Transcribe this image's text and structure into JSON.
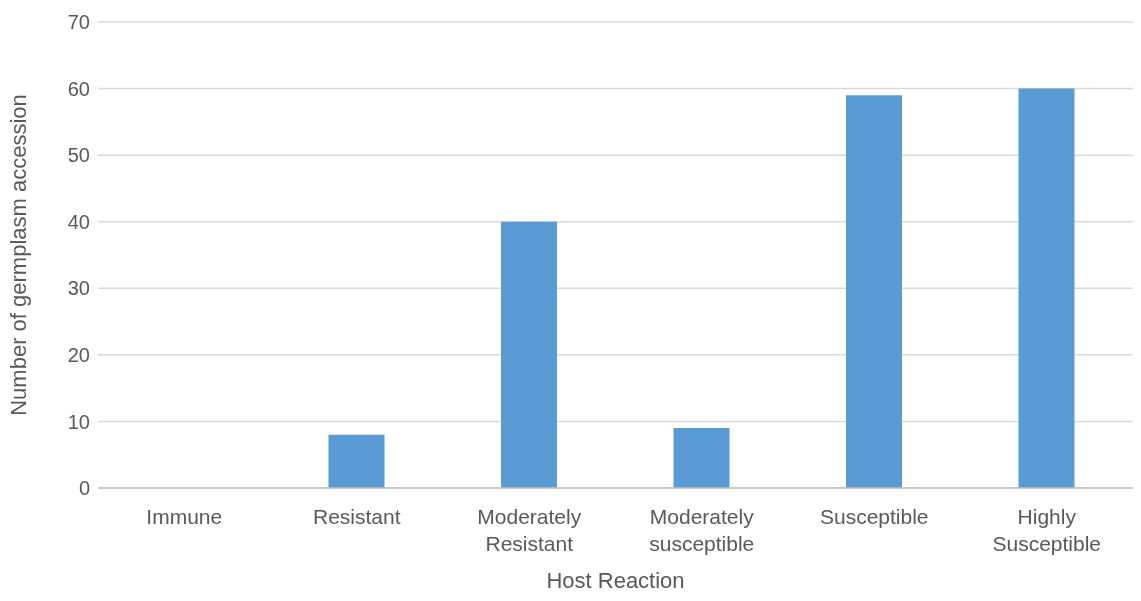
{
  "chart_data": {
    "type": "bar",
    "xlabel": "Host Reaction",
    "ylabel": "Number of germplasm accession",
    "categories": [
      "Immune",
      "Resistant",
      "Moderately Resistant",
      "Moderately susceptible",
      "Susceptible",
      "Highly Susceptible"
    ],
    "values": [
      0,
      8,
      40,
      9,
      59,
      60
    ],
    "color": "#5b9bd5",
    "ylim": [
      0,
      70
    ],
    "yticks": [
      0,
      10,
      20,
      30,
      40,
      50,
      60,
      70
    ],
    "grid": "y"
  }
}
